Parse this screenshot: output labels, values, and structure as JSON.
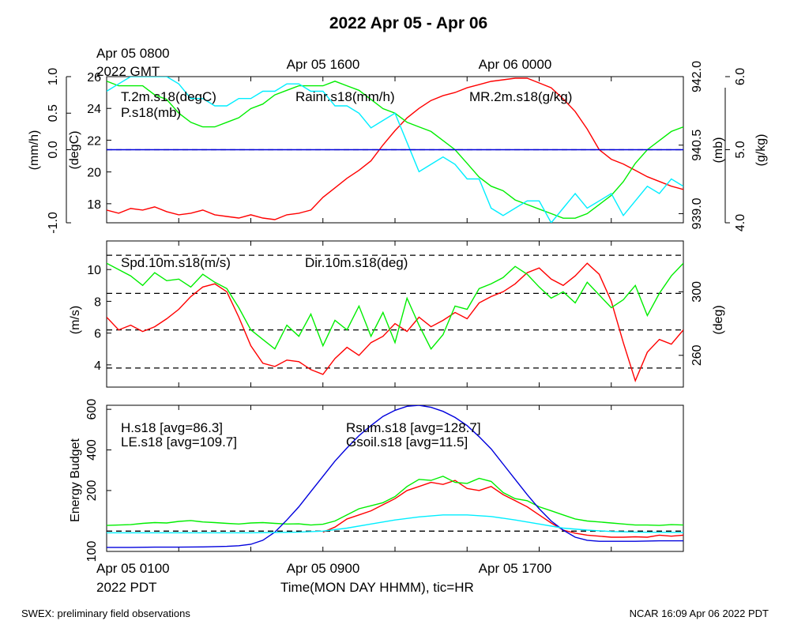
{
  "title": "2022 Apr 05 - Apr 06",
  "top_times": {
    "gmt_first": "Apr 05 0800",
    "gmt_zone": "2022 GMT",
    "gmt_mid": "Apr 05 1600",
    "gmt_last": "Apr 06 0000"
  },
  "bottom_times": {
    "pdt_first": "Apr 05 0100",
    "pdt_zone": "2022 PDT",
    "pdt_mid": "Apr 05 0900",
    "pdt_last": "Apr 05 1700",
    "xlabel": "Time(MON DAY HHMM), tic=HR"
  },
  "footer": {
    "left": "SWEX: preliminary field observations",
    "right": "NCAR 16:09 Apr 06 2022 PDT"
  },
  "colors": {
    "red": "#ff0000",
    "green": "#00ee00",
    "blue": "#0000dd",
    "cyan": "#00eeff"
  },
  "chart_data": [
    {
      "type": "line",
      "x_unit": "hours since Apr 05 0000 PDT",
      "xlim": [
        0,
        24
      ],
      "axes": {
        "rain": {
          "label": "(mm/h)",
          "ylim": [
            -1.0,
            1.0
          ],
          "ticks": [
            "-1.0",
            "0.0",
            "0.5",
            "1.0"
          ]
        },
        "temp": {
          "label": "(degC)",
          "ylim": [
            16.8,
            26.0
          ],
          "ticks": [
            "18",
            "20",
            "22",
            "24",
            "26"
          ]
        },
        "pres": {
          "label": "(mb)",
          "ylim": [
            938.8,
            942.0
          ],
          "ticks": [
            "939.0",
            "940.5",
            "942.0"
          ]
        },
        "mr": {
          "label": "(g/kg)",
          "ylim": [
            4.0,
            6.0
          ],
          "ticks": [
            "4.0",
            "5.0",
            "6.0"
          ]
        }
      },
      "series": [
        {
          "name": "T.2m.s18(degC)",
          "axis": "temp",
          "color": "#ff0000",
          "x": [
            0,
            0.5,
            1,
            1.5,
            2,
            2.5,
            3,
            3.5,
            4,
            4.5,
            5,
            5.5,
            6,
            6.5,
            7,
            7.5,
            8,
            8.5,
            9,
            9.5,
            10,
            10.5,
            11,
            11.5,
            12,
            12.5,
            13,
            13.5,
            14,
            14.5,
            15,
            15.5,
            16,
            16.5,
            17,
            17.5,
            18,
            18.5,
            19,
            19.5,
            20,
            20.5,
            21,
            21.5,
            22,
            22.5,
            23,
            23.5,
            24
          ],
          "values": [
            17.6,
            17.4,
            17.7,
            17.6,
            17.8,
            17.5,
            17.3,
            17.4,
            17.6,
            17.3,
            17.2,
            17.1,
            17.3,
            17.1,
            17.0,
            17.3,
            17.4,
            17.6,
            18.4,
            19.0,
            19.6,
            20.1,
            20.7,
            21.7,
            22.6,
            23.4,
            24.0,
            24.5,
            24.8,
            25.0,
            25.3,
            25.5,
            25.7,
            25.8,
            25.9,
            25.9,
            25.6,
            25.3,
            24.6,
            23.8,
            22.7,
            21.4,
            20.8,
            20.5,
            20.1,
            19.7,
            19.4,
            19.1,
            18.9
          ]
        },
        {
          "name": "P.s18(mb)",
          "axis": "pres",
          "color": "#00ee00",
          "x": [
            0,
            0.5,
            1,
            1.5,
            2,
            2.5,
            3,
            3.5,
            4,
            4.5,
            5,
            5.5,
            6,
            6.5,
            7,
            7.5,
            8,
            8.5,
            9,
            9.5,
            10,
            10.5,
            11,
            11.5,
            12,
            12.5,
            13,
            13.5,
            14,
            14.5,
            15,
            15.5,
            16,
            16.5,
            17,
            17.5,
            18,
            18.5,
            19,
            19.5,
            20,
            20.5,
            21,
            21.5,
            22,
            22.5,
            23,
            23.5,
            24
          ],
          "values": [
            941.9,
            941.8,
            941.8,
            941.8,
            941.6,
            941.5,
            941.2,
            941.0,
            940.9,
            940.9,
            941.0,
            941.1,
            941.3,
            941.4,
            941.6,
            941.7,
            941.8,
            941.8,
            941.8,
            941.9,
            941.8,
            941.7,
            941.5,
            941.3,
            941.2,
            941.0,
            940.9,
            940.8,
            940.6,
            940.4,
            940.1,
            939.8,
            939.6,
            939.5,
            939.3,
            939.2,
            939.1,
            939.0,
            938.9,
            938.9,
            939.0,
            939.2,
            939.4,
            939.7,
            940.1,
            940.4,
            940.6,
            940.8,
            940.9
          ]
        },
        {
          "name": "MR.2m.s18(g/kg)",
          "axis": "mr",
          "color": "#00eeff",
          "x": [
            0,
            0.5,
            1,
            1.5,
            2,
            2.5,
            3,
            3.5,
            4,
            4.5,
            5,
            5.5,
            6,
            6.5,
            7,
            7.5,
            8,
            8.5,
            9,
            9.5,
            10,
            10.5,
            11,
            11.5,
            12,
            12.5,
            13,
            13.5,
            14,
            14.5,
            15,
            15.5,
            16,
            16.5,
            17,
            17.5,
            18,
            18.5,
            19,
            19.5,
            20,
            20.5,
            21,
            21.5,
            22,
            22.5,
            23,
            23.5,
            24
          ],
          "values": [
            5.8,
            5.9,
            6.0,
            6.0,
            6.0,
            6.0,
            5.9,
            5.7,
            5.7,
            5.6,
            5.6,
            5.7,
            5.7,
            5.8,
            5.8,
            5.9,
            5.9,
            5.8,
            5.8,
            5.6,
            5.6,
            5.5,
            5.3,
            5.4,
            5.5,
            5.1,
            4.7,
            4.8,
            4.9,
            4.8,
            4.6,
            4.6,
            4.2,
            4.1,
            4.2,
            4.3,
            4.3,
            4.0,
            4.2,
            4.4,
            4.2,
            4.3,
            4.4,
            4.1,
            4.3,
            4.5,
            4.4,
            4.6,
            4.5
          ]
        },
        {
          "name": "Rainr.s18(mm/h)",
          "axis": "rain",
          "color": "#0000dd",
          "x": [
            0,
            24
          ],
          "values": [
            0.0,
            0.0
          ]
        }
      ],
      "ref_lines": [
        {
          "axis": "rain",
          "value": 0.0,
          "style": "dashed"
        }
      ]
    },
    {
      "type": "line",
      "x_unit": "hours since Apr 05 0000 PDT",
      "xlim": [
        0,
        24
      ],
      "axes": {
        "spd": {
          "label": "(m/s)",
          "ylim": [
            2.6,
            11.8
          ],
          "ticks": [
            "4",
            "6",
            "8",
            "10"
          ]
        },
        "dir": {
          "label": "(deg)",
          "ylim": [
            240,
            332
          ],
          "ticks": [
            "260",
            "300"
          ]
        }
      },
      "series": [
        {
          "name": "Spd.10m.s18(m/s)",
          "axis": "spd",
          "color": "#ff0000",
          "x": [
            0,
            0.5,
            1,
            1.5,
            2,
            2.5,
            3,
            3.5,
            4,
            4.5,
            5,
            5.5,
            6,
            6.5,
            7,
            7.5,
            8,
            8.5,
            9,
            9.5,
            10,
            10.5,
            11,
            11.5,
            12,
            12.5,
            13,
            13.5,
            14,
            14.5,
            15,
            15.5,
            16,
            16.5,
            17,
            17.5,
            18,
            18.5,
            19,
            19.5,
            20,
            20.5,
            21,
            21.5,
            22,
            22.5,
            23,
            23.5,
            24
          ],
          "values": [
            7.0,
            6.2,
            6.5,
            6.1,
            6.4,
            6.9,
            7.5,
            8.3,
            8.9,
            9.1,
            8.6,
            7.0,
            5.2,
            4.1,
            3.9,
            4.3,
            4.2,
            3.7,
            3.4,
            4.4,
            5.1,
            4.6,
            5.4,
            5.8,
            6.6,
            6.1,
            7.0,
            6.4,
            6.8,
            7.3,
            6.9,
            7.9,
            8.3,
            8.6,
            9.1,
            9.8,
            10.1,
            9.4,
            9.0,
            9.6,
            10.4,
            9.7,
            8.0,
            5.4,
            3.0,
            4.8,
            5.6,
            5.3,
            6.2
          ]
        },
        {
          "name": "Dir.10m.s18(deg)",
          "axis": "dir",
          "color": "#00ee00",
          "x": [
            0,
            0.5,
            1,
            1.5,
            2,
            2.5,
            3,
            3.5,
            4,
            4.5,
            5,
            5.5,
            6,
            6.5,
            7,
            7.5,
            8,
            8.5,
            9,
            9.5,
            10,
            10.5,
            11,
            11.5,
            12,
            12.5,
            13,
            13.5,
            14,
            14.5,
            15,
            15.5,
            16,
            16.5,
            17,
            17.5,
            18,
            18.5,
            19,
            19.5,
            20,
            20.5,
            21,
            21.5,
            22,
            22.5,
            23,
            23.5,
            24
          ],
          "values": [
            318,
            314,
            310,
            304,
            312,
            307,
            308,
            303,
            311,
            306,
            302,
            290,
            276,
            270,
            264,
            279,
            272,
            286,
            266,
            282,
            276,
            291,
            272,
            287,
            268,
            296,
            279,
            264,
            273,
            291,
            289,
            302,
            305,
            309,
            316,
            311,
            303,
            296,
            300,
            293,
            306,
            298,
            290,
            295,
            304,
            285,
            299,
            310,
            318
          ]
        }
      ],
      "ref_lines": [
        {
          "axis": "spd",
          "value": 3.8,
          "style": "dashed"
        },
        {
          "axis": "spd",
          "value": 6.2,
          "style": "dashed"
        },
        {
          "axis": "spd",
          "value": 8.5,
          "style": "dashed"
        },
        {
          "axis": "spd",
          "value": 10.9,
          "style": "dashed"
        }
      ]
    },
    {
      "type": "line",
      "x_unit": "hours since Apr 05 0000 PDT",
      "xlim": [
        0,
        24
      ],
      "ylabel": "Energy Budget",
      "ylim": [
        -100,
        620
      ],
      "yticks": [
        "100",
        "200",
        "400",
        "600"
      ],
      "series": [
        {
          "name": "H.s18",
          "legend": "H.s18 [avg=86.3]",
          "color": "#ff0000",
          "x": [
            9,
            9.5,
            10,
            10.5,
            11,
            11.5,
            12,
            12.5,
            13,
            13.5,
            14,
            14.5,
            15,
            15.5,
            16,
            16.5,
            17,
            17.5,
            18,
            18.5,
            19,
            19.5,
            20,
            20.5,
            21,
            21.5,
            22,
            22.5,
            23,
            23.5,
            24
          ],
          "values": [
            -5,
            20,
            60,
            80,
            100,
            130,
            160,
            200,
            220,
            240,
            230,
            250,
            210,
            200,
            220,
            180,
            150,
            120,
            80,
            40,
            5,
            -10,
            -20,
            -25,
            -30,
            -30,
            -28,
            -30,
            -20,
            -25,
            -20
          ]
        },
        {
          "name": "LE.s18",
          "legend": "LE.s18 [avg=109.7]",
          "color": "#00ee00",
          "x": [
            0,
            0.5,
            1,
            1.5,
            2,
            2.5,
            3,
            3.5,
            4,
            4.5,
            5,
            5.5,
            6,
            6.5,
            7,
            7.5,
            8,
            8.5,
            9,
            9.5,
            10,
            10.5,
            11,
            11.5,
            12,
            12.5,
            13,
            13.5,
            14,
            14.5,
            15,
            15.5,
            16,
            16.5,
            17,
            17.5,
            18,
            18.5,
            19,
            19.5,
            20,
            20.5,
            21,
            21.5,
            22,
            22.5,
            23,
            23.5,
            24
          ],
          "values": [
            28,
            30,
            32,
            38,
            42,
            40,
            48,
            52,
            45,
            42,
            38,
            35,
            40,
            42,
            38,
            35,
            36,
            30,
            34,
            50,
            80,
            110,
            125,
            140,
            170,
            220,
            255,
            250,
            270,
            240,
            235,
            260,
            245,
            190,
            160,
            150,
            120,
            100,
            80,
            60,
            50,
            45,
            40,
            35,
            30,
            30,
            28,
            32,
            30
          ]
        },
        {
          "name": "Rsum.s18",
          "legend": "Rsum.s18 [avg=128.7]",
          "color": "#0000dd",
          "x": [
            0,
            1,
            2,
            3,
            4,
            5,
            5.5,
            6,
            6.5,
            7,
            7.5,
            8,
            8.5,
            9,
            9.5,
            10,
            10.5,
            11,
            11.5,
            12,
            12.5,
            13,
            13.5,
            14,
            14.5,
            15,
            15.5,
            16,
            16.5,
            17,
            17.5,
            18,
            18.5,
            19,
            19.5,
            20,
            20.5,
            21,
            22,
            23,
            24
          ],
          "values": [
            -80,
            -80,
            -79,
            -79,
            -78,
            -75,
            -72,
            -65,
            -45,
            -5,
            55,
            120,
            195,
            270,
            345,
            410,
            470,
            520,
            565,
            595,
            615,
            620,
            610,
            590,
            560,
            520,
            465,
            405,
            330,
            255,
            180,
            110,
            50,
            5,
            -30,
            -45,
            -50,
            -50,
            -50,
            -48,
            -48
          ]
        },
        {
          "name": "Gsoil.s18",
          "legend": "Gsoil.s18 [avg=11.5]",
          "color": "#00eeff",
          "x": [
            0,
            1,
            2,
            3,
            4,
            5,
            6,
            7,
            8,
            9,
            10,
            11,
            12,
            13,
            14,
            15,
            16,
            17,
            18,
            19,
            20,
            21,
            22,
            23,
            24
          ],
          "values": [
            -8,
            -8,
            -8,
            -8,
            -8,
            -8,
            -8,
            -7,
            -5,
            0,
            15,
            35,
            55,
            70,
            80,
            80,
            72,
            55,
            35,
            15,
            5,
            -2,
            -5,
            -6,
            -7
          ]
        }
      ],
      "ref_lines": [
        {
          "value": 0,
          "style": "dashed"
        }
      ]
    }
  ]
}
